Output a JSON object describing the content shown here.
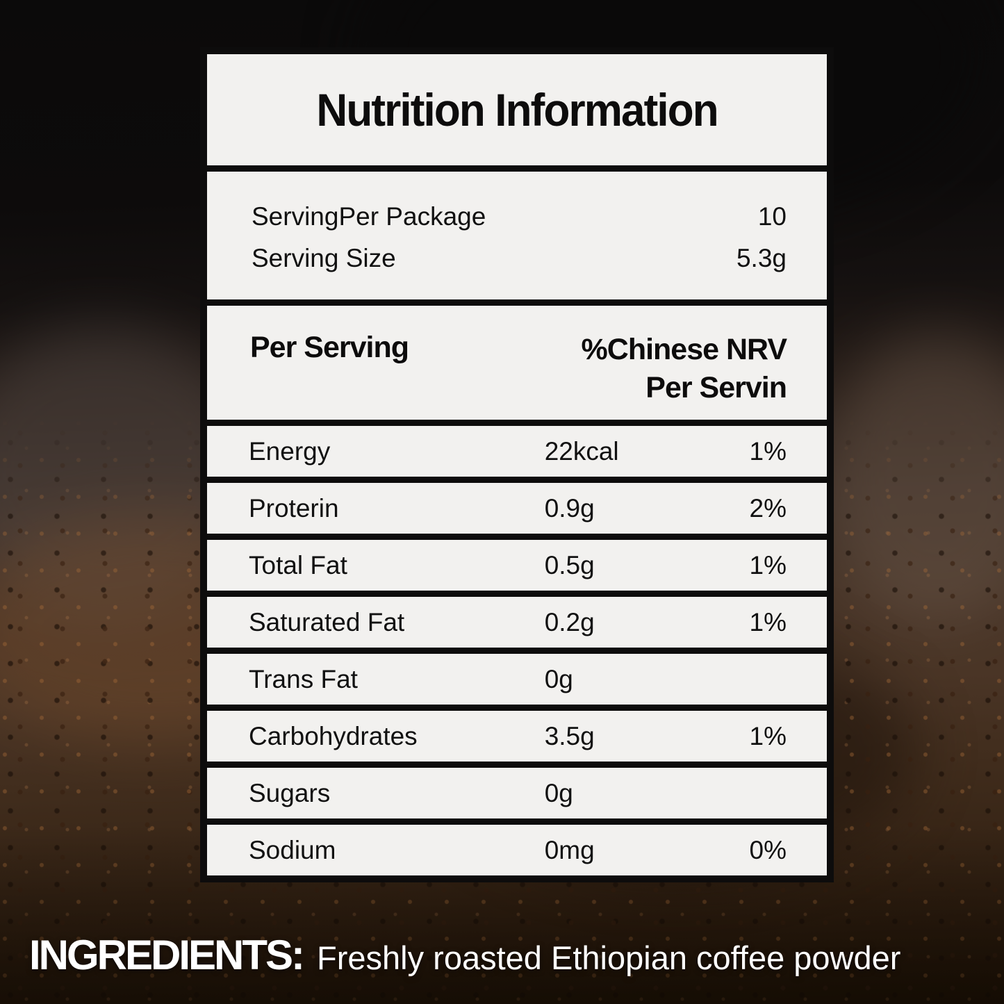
{
  "colors": {
    "panel": "#f2f1ef",
    "frame": "#0d0c0c",
    "background_base": "#2b1b0d",
    "ingredients_text": "#ffffff"
  },
  "table": {
    "title": "Nutrition Information",
    "serving_rows": [
      {
        "label": "ServingPer Package",
        "value": "10"
      },
      {
        "label": "Serving Size",
        "value": "5.3g"
      }
    ],
    "header": {
      "left": "Per Serving",
      "right_line1": "%Chinese NRV",
      "right_line2": "Per Servin"
    },
    "rows": [
      {
        "name": "Energy",
        "amount": "22kcal",
        "nrv": "1%"
      },
      {
        "name": "Proterin",
        "amount": "0.9g",
        "nrv": "2%"
      },
      {
        "name": "Total Fat",
        "amount": "0.5g",
        "nrv": "1%"
      },
      {
        "name": "Saturated Fat",
        "amount": "0.2g",
        "nrv": "1%"
      },
      {
        "name": "Trans Fat",
        "amount": "0g",
        "nrv": ""
      },
      {
        "name": "Carbohydrates",
        "amount": "3.5g",
        "nrv": "1%"
      },
      {
        "name": "Sugars",
        "amount": "0g",
        "nrv": ""
      },
      {
        "name": "Sodium",
        "amount": "0mg",
        "nrv": "0%"
      }
    ]
  },
  "ingredients": {
    "label": "INGREDIENTS:",
    "text": "Freshly roasted Ethiopian coffee powder"
  }
}
